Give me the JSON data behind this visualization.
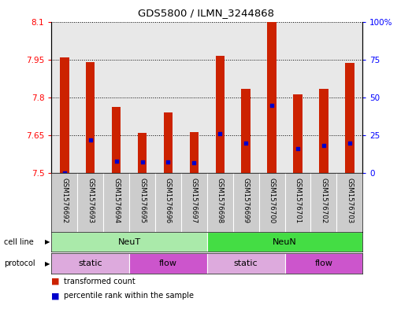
{
  "title": "GDS5800 / ILMN_3244868",
  "samples": [
    "GSM1576692",
    "GSM1576693",
    "GSM1576694",
    "GSM1576695",
    "GSM1576696",
    "GSM1576697",
    "GSM1576698",
    "GSM1576699",
    "GSM1576700",
    "GSM1576701",
    "GSM1576702",
    "GSM1576703"
  ],
  "bar_values": [
    7.958,
    7.941,
    7.763,
    7.658,
    7.74,
    7.663,
    7.963,
    7.833,
    8.097,
    7.812,
    7.833,
    7.935
  ],
  "percentile_values": [
    7.5,
    7.63,
    7.548,
    7.545,
    7.543,
    7.54,
    7.657,
    7.618,
    7.769,
    7.598,
    7.608,
    7.618
  ],
  "bar_bottom": 7.5,
  "ylim_left": [
    7.5,
    8.1
  ],
  "ylim_right": [
    0,
    100
  ],
  "yticks_left": [
    7.5,
    7.65,
    7.8,
    7.95,
    8.1
  ],
  "yticks_right": [
    0,
    25,
    50,
    75,
    100
  ],
  "ytick_labels_left": [
    "7.5",
    "7.65",
    "7.8",
    "7.95",
    "8.1"
  ],
  "ytick_labels_right": [
    "0",
    "25",
    "50",
    "75",
    "100%"
  ],
  "cell_line_groups": [
    {
      "label": "NeuT",
      "start": 0,
      "end": 6,
      "color": "#AAEAAA"
    },
    {
      "label": "NeuN",
      "start": 6,
      "end": 12,
      "color": "#44DD44"
    }
  ],
  "protocol_groups": [
    {
      "label": "static",
      "start": 0,
      "end": 3,
      "color": "#DDAADD"
    },
    {
      "label": "flow",
      "start": 3,
      "end": 6,
      "color": "#CC55CC"
    },
    {
      "label": "static",
      "start": 6,
      "end": 9,
      "color": "#DDAADD"
    },
    {
      "label": "flow",
      "start": 9,
      "end": 12,
      "color": "#CC55CC"
    }
  ],
  "bar_color": "#CC2200",
  "dot_color": "#0000CC",
  "background_color": "#FFFFFF",
  "plot_bg_color": "#E8E8E8",
  "legend_items": [
    {
      "color": "#CC2200",
      "label": "transformed count"
    },
    {
      "color": "#0000CC",
      "label": "percentile rank within the sample"
    }
  ]
}
